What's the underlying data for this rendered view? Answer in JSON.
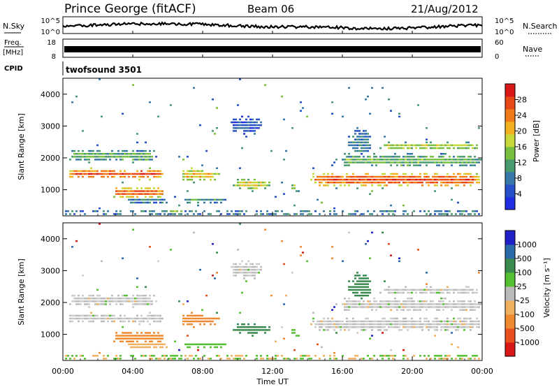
{
  "header": {
    "station": "Prince George (fitACF)",
    "beam": "Beam 06",
    "date": "21/Aug/2012"
  },
  "noise_panel": {
    "left_label": "N.Sky",
    "right_label": "N.Search",
    "ticks": [
      "10^5",
      "10^0"
    ]
  },
  "freq_panel": {
    "left_label_top": "Freq.",
    "left_label_bottom": "[MHz]",
    "left_ticks": [
      "18",
      "8"
    ],
    "right_ticks": [
      "60",
      "0"
    ],
    "right_label": "Nave"
  },
  "cpid": {
    "label": "CPID",
    "value": "twofsound 3501"
  },
  "chart_data": [
    {
      "type": "heatmap",
      "quantity": "Power",
      "ylabel": "Slant Range [km]",
      "ylim": [
        180,
        4500
      ],
      "yticks": [
        "1000",
        "2000",
        "3000",
        "4000"
      ],
      "colorbar": {
        "label": "Power [dB]",
        "ticks": [
          "4",
          "8",
          "12",
          "16",
          "20",
          "24",
          "28"
        ],
        "range": [
          0,
          30
        ],
        "colors": [
          "#1f2ee0",
          "#2650c8",
          "#3878a8",
          "#4a9a70",
          "#7ac040",
          "#c8d838",
          "#f2b220",
          "#f07a18",
          "#e84818",
          "#d81818"
        ]
      }
    },
    {
      "type": "heatmap",
      "quantity": "Velocity",
      "ylabel": "Slant Range [km]",
      "ylim": [
        180,
        4500
      ],
      "yticks": [
        "1000",
        "2000",
        "3000",
        "4000"
      ],
      "colorbar": {
        "label": "Velocity [m s⁻¹]",
        "ticks": [
          "1000",
          "500",
          "100",
          "25",
          "-25",
          "-100",
          "-500",
          "-1000"
        ],
        "colors": [
          "#2020c8",
          "#2a6aa8",
          "#3a8a50",
          "#52c030",
          "#bbbbbb",
          "#f0b060",
          "#f08a30",
          "#e85020",
          "#d81818"
        ]
      }
    }
  ],
  "x_axis": {
    "label": "Time UT",
    "ticks": [
      "00:00",
      "04:00",
      "08:00",
      "12:00",
      "16:00",
      "20:00",
      "00:00"
    ]
  }
}
